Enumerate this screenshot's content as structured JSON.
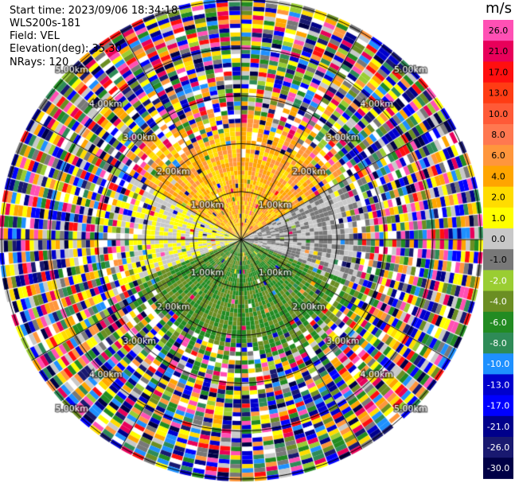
{
  "header": {
    "start_time": "Start time: 2023/09/06 18:34:18",
    "instrument": "WLS200s-181",
    "field": "Field: VEL",
    "elevation": "Elevation(deg): 35.30",
    "nrays": "NRays: 120"
  },
  "colorbar": {
    "unit": "m/s",
    "levels": [
      "26.0",
      "21.0",
      "17.0",
      "13.0",
      "10.0",
      "8.0",
      "6.0",
      "4.0",
      "2.0",
      "1.0",
      "0.0",
      "-1.0",
      "-2.0",
      "-4.0",
      "-6.0",
      "-8.0",
      "-10.0",
      "-13.0",
      "-17.0",
      "-21.0",
      "-26.0",
      "-30.0"
    ],
    "colors": [
      "#ff50b4",
      "#e8005a",
      "#ff0f0f",
      "#ff3c14",
      "#ff5a37",
      "#ff7850",
      "#ff963c",
      "#ffa500",
      "#ffdc00",
      "#ffff00",
      "#c8c8c8",
      "#787878",
      "#9acd32",
      "#6b8e23",
      "#228b22",
      "#2e8b57",
      "#1e90ff",
      "#0000cd",
      "#0000ff",
      "#00008b",
      "#191970",
      "#000046"
    ]
  },
  "chart_data": {
    "type": "heatmap",
    "subtype": "ppi-radial-velocity",
    "field": "VEL",
    "unit": "m/s",
    "nrays": 120,
    "range_rings_km": [
      1.0,
      2.0,
      3.0,
      4.0,
      5.0
    ],
    "range_ring_labels": [
      "1.00km",
      "2.00km",
      "3.00km",
      "4.00km",
      "5.00km"
    ],
    "spoke_angles_deg": [
      0,
      30,
      60,
      90,
      120,
      150,
      180,
      210,
      240,
      270,
      300,
      330
    ],
    "max_range_km": 5.05,
    "valid_data_range_km": 2.5,
    "sectors": [
      {
        "azimuth_from_deg": 300,
        "azimuth_to_deg": 60,
        "velocity_ms": [
          2.0,
          8.0
        ]
      },
      {
        "azimuth_from_deg": 60,
        "azimuth_to_deg": 110,
        "velocity_ms": [
          -1.0,
          1.0
        ]
      },
      {
        "azimuth_from_deg": 110,
        "azimuth_to_deg": 250,
        "velocity_ms": [
          -6.0,
          -2.0
        ]
      },
      {
        "azimuth_from_deg": 250,
        "azimuth_to_deg": 300,
        "velocity_ms": [
          0.0,
          2.0
        ]
      }
    ]
  }
}
